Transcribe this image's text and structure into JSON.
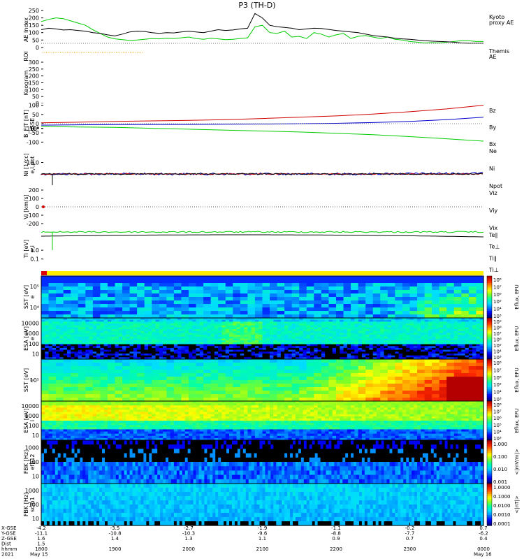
{
  "title": "P3 (TH-D)",
  "chart_data": [
    {
      "panel": "ae",
      "type": "line",
      "ylabel": "AE Index",
      "yticks": [
        "250",
        "200",
        "150",
        "100",
        "50",
        "0"
      ],
      "ylim": [
        -20,
        260
      ],
      "series": [
        {
          "name": "Kyoto proxy AE",
          "color": "#00cc00",
          "x": [
            0,
            5,
            10,
            15,
            20,
            25,
            30,
            35,
            40,
            45,
            50,
            55,
            60,
            65,
            70,
            75,
            80,
            85,
            90,
            95,
            100,
            105,
            110,
            115,
            120,
            125,
            130,
            135,
            140,
            145,
            150,
            155,
            160,
            165,
            170,
            175,
            180,
            185,
            190,
            195,
            200,
            205,
            210,
            215,
            220,
            225,
            230,
            235,
            240,
            245,
            250,
            255,
            260,
            265,
            270,
            275,
            280,
            285,
            290,
            295,
            300
          ],
          "y": [
            175,
            190,
            200,
            195,
            180,
            165,
            150,
            120,
            95,
            70,
            58,
            52,
            48,
            50,
            55,
            60,
            58,
            62,
            60,
            65,
            70,
            60,
            55,
            62,
            58,
            52,
            55,
            60,
            65,
            140,
            150,
            100,
            95,
            110,
            70,
            75,
            60,
            100,
            90,
            70,
            85,
            95,
            60,
            75,
            80,
            70,
            60,
            70,
            55,
            50,
            40,
            35,
            30,
            32,
            30,
            35,
            40,
            45,
            45,
            40,
            40
          ]
        },
        {
          "name": "Themis AE",
          "color": "#000000",
          "x": [
            0,
            5,
            10,
            15,
            20,
            25,
            30,
            35,
            40,
            45,
            50,
            55,
            60,
            65,
            70,
            75,
            80,
            85,
            90,
            95,
            100,
            105,
            110,
            115,
            120,
            125,
            130,
            135,
            140,
            145,
            150,
            155,
            160,
            165,
            170,
            175,
            180,
            185,
            190,
            195,
            200,
            205,
            210,
            215,
            220,
            225,
            230,
            235,
            240,
            245,
            250,
            255,
            260,
            265,
            270,
            275,
            280,
            285,
            290,
            295,
            300
          ],
          "y": [
            120,
            130,
            125,
            118,
            120,
            115,
            110,
            100,
            95,
            85,
            78,
            90,
            105,
            110,
            108,
            100,
            95,
            100,
            98,
            105,
            110,
            105,
            100,
            110,
            120,
            115,
            118,
            125,
            130,
            230,
            200,
            150,
            140,
            135,
            130,
            120,
            125,
            130,
            128,
            122,
            115,
            110,
            105,
            100,
            90,
            80,
            75,
            70,
            62,
            58,
            55,
            50,
            45,
            42,
            40,
            38,
            35,
            30,
            28,
            28,
            28
          ]
        }
      ]
    },
    {
      "panel": "roi",
      "type": "line",
      "ylabel": "ROI"
    },
    {
      "panel": "keogram",
      "type": "line",
      "ylabel": "Keogram",
      "yticks": [
        "300",
        "250",
        "200",
        "150",
        "100",
        "50",
        "0"
      ],
      "ylim": [
        0,
        300
      ]
    },
    {
      "panel": "bfield",
      "type": "line",
      "ylabel": "B_FIT [nT]",
      "sublabel": "GSE",
      "yticks": [
        "100",
        "50",
        "0",
        "-50",
        "-100"
      ],
      "ylim": [
        -110,
        110
      ],
      "series": [
        {
          "name": "Bz",
          "color": "#d00000",
          "x": [
            0,
            25,
            50,
            75,
            100,
            125,
            150,
            175,
            200,
            225,
            250,
            275,
            300
          ],
          "y": [
            5,
            8,
            12,
            15,
            18,
            22,
            28,
            35,
            42,
            52,
            65,
            80,
            100
          ]
        },
        {
          "name": "By",
          "color": "#0000cc",
          "x": [
            0,
            25,
            50,
            75,
            100,
            125,
            150,
            175,
            200,
            225,
            250,
            275,
            300
          ],
          "y": [
            -8,
            -6,
            -5,
            -4,
            -4,
            -3,
            -2,
            0,
            2,
            6,
            12,
            22,
            35
          ]
        },
        {
          "name": "Bx",
          "color": "#00cc00",
          "x": [
            0,
            25,
            50,
            75,
            100,
            125,
            150,
            175,
            200,
            225,
            250,
            275,
            300
          ],
          "y": [
            -15,
            -18,
            -20,
            -25,
            -30,
            -35,
            -40,
            -45,
            -52,
            -60,
            -70,
            -82,
            -95
          ]
        }
      ]
    },
    {
      "panel": "density",
      "type": "line",
      "ylabel": "Ni [1/cc]",
      "sublabel": "e,i,pot",
      "yticks": [
        "10⁶",
        "10⁴",
        "10²",
        "10⁰",
        "10⁻²"
      ],
      "ylim": [
        -3,
        6.5
      ],
      "series": [
        {
          "name": "Ne",
          "color": "#d00000"
        },
        {
          "name": "Ni",
          "color": "#000000"
        },
        {
          "name": "Npot",
          "color": "#0000cc"
        }
      ]
    },
    {
      "panel": "velocity",
      "type": "line",
      "ylabel": "Vi [km/s]",
      "yticks": [
        "200",
        "100",
        "0",
        "-100",
        "-200"
      ],
      "ylim": [
        -250,
        250
      ],
      "series": [
        {
          "name": "Viz",
          "color": "#d00000"
        },
        {
          "name": "Viy",
          "color": "#00cc00"
        },
        {
          "name": "Vix",
          "color": "#0000cc"
        }
      ]
    },
    {
      "panel": "temperature",
      "type": "line",
      "ylabel": "Ti [eV]",
      "sublabel": "e,i",
      "yticks": [
        "1000.0",
        "100.0",
        "10.0",
        "1.0",
        "0.1"
      ],
      "ylim": [
        -1,
        3.3
      ],
      "series": [
        {
          "name": "Te∥",
          "color": "#000000"
        },
        {
          "name": "Te⊥",
          "color": "#d00000"
        },
        {
          "name": "Ti∥",
          "color": "#00cc00"
        },
        {
          "name": "Ti⊥",
          "color": "#0000cc"
        }
      ]
    },
    {
      "panel": "sst_e",
      "type": "heatmap",
      "ylabel": "SST [eV]",
      "sublabel": "e",
      "yticks": [
        "10⁵",
        "10⁴"
      ],
      "cbar_label": "Eflux, EFU",
      "cbar_ticks": [
        "10⁸",
        "10⁷",
        "10⁶",
        "10⁵",
        "10⁴",
        "10³"
      ]
    },
    {
      "panel": "esa_e",
      "type": "heatmap",
      "ylabel": "ESA [eV]",
      "sublabel": "e",
      "yticks": [
        "10000",
        "1000",
        "100",
        "10"
      ],
      "cbar_label": "Eflux, EFU",
      "cbar_ticks": [
        "10⁹",
        "10⁸",
        "10⁷",
        "10⁶",
        "10⁵",
        "10⁴",
        "10³"
      ]
    },
    {
      "panel": "sst_i",
      "type": "heatmap",
      "ylabel": "SST [eV]",
      "sublabel": "i",
      "yticks": [
        "10⁵"
      ],
      "cbar_label": "Eflux, EFU",
      "cbar_ticks": [
        "10⁸",
        "10⁷",
        "10⁶",
        "10⁵",
        "10⁴",
        "10³"
      ]
    },
    {
      "panel": "esa_i",
      "type": "heatmap",
      "ylabel": "ESA [eV]",
      "sublabel": "i",
      "yticks": [
        "10000",
        "1000",
        "100",
        "10"
      ],
      "cbar_label": "Eflux, EFU",
      "cbar_ticks": [
        "10⁸",
        "10⁷",
        "10⁶",
        "10⁵",
        "10⁴",
        "10³"
      ]
    },
    {
      "panel": "fbk_e",
      "type": "heatmap",
      "ylabel": "FBK [Hz]",
      "sublabel": "efp12",
      "yticks": [
        "1000",
        "100",
        "10"
      ],
      "cbar_label": "<|mV/m|>",
      "cbar_ticks": [
        "1.000",
        "0.100",
        "0.010",
        "0.001"
      ]
    },
    {
      "panel": "fbk_b",
      "type": "heatmap",
      "ylabel": "FBK [Hz]",
      "sublabel": "scm1",
      "yticks": [
        "1000",
        "100",
        "10"
      ],
      "cbar_label": "<|nT|>",
      "cbar_ticks": [
        "1.0000",
        "0.1000",
        "0.0100",
        "0.0010",
        "0.0001"
      ]
    }
  ],
  "xaxis": {
    "row_labels": [
      "X-GSE",
      "Y-GSE",
      "Z-GSE",
      "Dist",
      "hhmm",
      "2021"
    ],
    "ticks": [
      {
        "vals": [
          "-4.2",
          "-11.1",
          "1.6",
          "1.5",
          "1800",
          "May 15"
        ]
      },
      {
        "vals": [
          "-3.5",
          "-10.8",
          "1.4",
          "",
          "1900",
          ""
        ]
      },
      {
        "vals": [
          "-2.7",
          "-10.3",
          "1.3",
          "",
          "2000",
          ""
        ]
      },
      {
        "vals": [
          "-1.9",
          "-9.6",
          "1.1",
          "",
          "2100",
          ""
        ]
      },
      {
        "vals": [
          "-1.1",
          "-8.8",
          "0.9",
          "",
          "2200",
          ""
        ]
      },
      {
        "vals": [
          "-0.2",
          "-7.7",
          "0.7",
          "",
          "2300",
          ""
        ]
      },
      {
        "vals": [
          "0.7",
          "-6.2",
          "0.4",
          "",
          "0000",
          "May 16"
        ]
      }
    ]
  }
}
